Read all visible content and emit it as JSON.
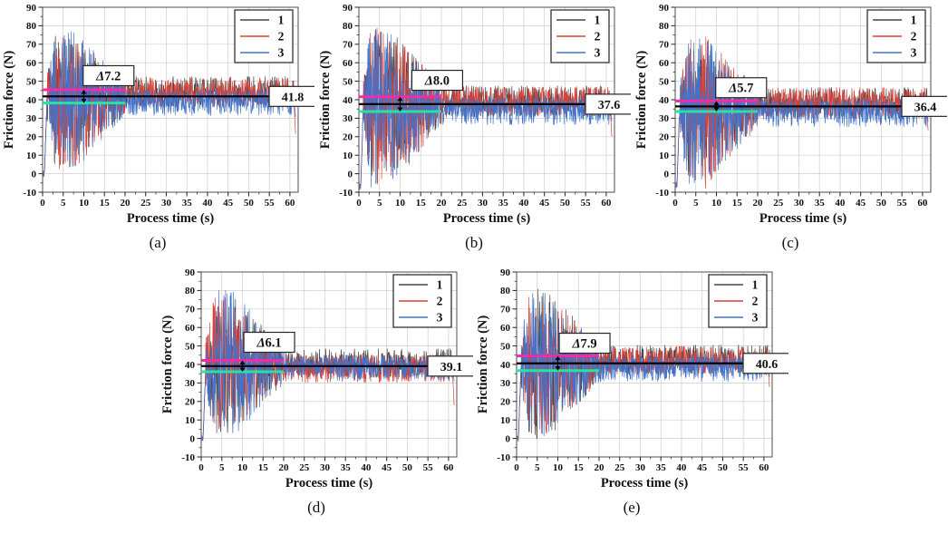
{
  "figure": {
    "xlabel": "Process time (s)",
    "ylabel": "Friction force (N)",
    "legend": [
      {
        "label": "1",
        "color": "#474747"
      },
      {
        "label": "2",
        "color": "#d8423a"
      },
      {
        "label": "3",
        "color": "#4273cc"
      }
    ]
  },
  "colors": {
    "grid": "#cdcdcd",
    "frame": "#4d4d4d",
    "text": "#111111",
    "mean_line": "#000000",
    "upper_band": "#f22ba6",
    "lower_band": "#27e2a0",
    "annotation_bg": "#ffffff",
    "annotation_border": "#262626"
  },
  "axes": {
    "xlim": [
      0,
      62
    ],
    "ylim": [
      -10,
      90
    ],
    "xticks": [
      0,
      5,
      10,
      15,
      20,
      25,
      30,
      35,
      40,
      45,
      50,
      55,
      60
    ],
    "yticks": [
      -10,
      0,
      10,
      20,
      30,
      40,
      50,
      60,
      70,
      80,
      90
    ],
    "x_minor_step": 2.5,
    "y_minor_step": 5,
    "grid": true
  },
  "chart_data": [
    {
      "type": "line",
      "caption": "(a)",
      "xlabel": "Process time (s)",
      "ylabel": "Friction force (N)",
      "legend": [
        "1",
        "2",
        "3"
      ],
      "xlim": [
        0,
        62
      ],
      "ylim": [
        -10,
        90
      ],
      "steady_mean": 41.8,
      "mean_label": "41.8",
      "delta": 7.2,
      "delta_symbol": "Δ",
      "delta_number": "7.2",
      "band": {
        "upper": 45.4,
        "lower": 38.2,
        "x_start": 0,
        "x_end": 20
      },
      "arrow_x": 10,
      "delta_box_pos": {
        "x": 16,
        "y": 53
      },
      "t_end": 61.4,
      "start_value": 0,
      "seed": 101,
      "early_phase": {
        "t_start": 1,
        "t_end": 20,
        "peak": 77,
        "min": 1
      },
      "late_band": {
        "high": 52,
        "low": 33
      },
      "series": [
        {
          "name": "1",
          "color": "#474747",
          "early_scale": 0.93,
          "late_up": 1.0,
          "late_down": 0.72,
          "offset": 0.5
        },
        {
          "name": "2",
          "color": "#d8423a",
          "early_scale": 0.96,
          "late_up": 0.85,
          "late_down": 0.75,
          "offset": 1.5,
          "end_dip": -22
        },
        {
          "name": "3",
          "color": "#4273cc",
          "early_scale": 1.0,
          "late_up": 0.5,
          "late_down": 1.0,
          "offset": -1.5,
          "end_dip": -12
        }
      ]
    },
    {
      "type": "line",
      "caption": "(b)",
      "xlabel": "Process time (s)",
      "ylabel": "Friction force (N)",
      "legend": [
        "1",
        "2",
        "3"
      ],
      "xlim": [
        0,
        62
      ],
      "ylim": [
        -10,
        90
      ],
      "steady_mean": 37.6,
      "mean_label": "37.6",
      "delta": 8.0,
      "delta_symbol": "Δ",
      "delta_number": "8.0",
      "band": {
        "upper": 41.6,
        "lower": 33.6,
        "x_start": 0,
        "x_end": 20
      },
      "arrow_x": 10,
      "delta_box_pos": {
        "x": 19,
        "y": 50.5
      },
      "t_end": 61.4,
      "start_value": -7,
      "seed": 202,
      "early_phase": {
        "t_start": 1,
        "t_end": 20,
        "peak": 80,
        "min": -8
      },
      "late_band": {
        "high": 47,
        "low": 28
      },
      "series": [
        {
          "name": "1",
          "color": "#474747",
          "early_scale": 0.95,
          "late_up": 1.0,
          "late_down": 0.75,
          "offset": 0.5
        },
        {
          "name": "2",
          "color": "#d8423a",
          "early_scale": 0.97,
          "late_up": 0.85,
          "late_down": 0.8,
          "offset": 1.5,
          "end_dip": -19
        },
        {
          "name": "3",
          "color": "#4273cc",
          "early_scale": 1.0,
          "late_up": 0.55,
          "late_down": 1.0,
          "offset": -1.5,
          "end_dip": -10
        }
      ]
    },
    {
      "type": "line",
      "caption": "(c)",
      "xlabel": "Process time (s)",
      "ylabel": "Friction force (N)",
      "legend": [
        "1",
        "2",
        "3"
      ],
      "xlim": [
        0,
        62
      ],
      "ylim": [
        -10,
        90
      ],
      "steady_mean": 36.4,
      "mean_label": "36.4",
      "delta": 5.7,
      "delta_symbol": "Δ",
      "delta_number": "5.7",
      "band": {
        "upper": 39.3,
        "lower": 33.6,
        "x_start": 0,
        "x_end": 20
      },
      "arrow_x": 10,
      "delta_box_pos": {
        "x": 16,
        "y": 46.5
      },
      "t_end": 61.4,
      "start_value": -6,
      "seed": 303,
      "early_phase": {
        "t_start": 1,
        "t_end": 20,
        "peak": 74,
        "min": -8
      },
      "late_band": {
        "high": 46,
        "low": 27
      },
      "series": [
        {
          "name": "1",
          "color": "#474747",
          "early_scale": 0.88,
          "late_up": 1.0,
          "late_down": 0.75,
          "offset": 0.5
        },
        {
          "name": "2",
          "color": "#d8423a",
          "early_scale": 1.0,
          "late_up": 0.9,
          "late_down": 0.85,
          "offset": 1.5,
          "end_dip": -14
        },
        {
          "name": "3",
          "color": "#4273cc",
          "early_scale": 0.97,
          "late_up": 0.6,
          "late_down": 1.0,
          "offset": -1.5,
          "end_dip": -9
        }
      ]
    },
    {
      "type": "line",
      "caption": "(d)",
      "xlabel": "Process time (s)",
      "ylabel": "Friction force (N)",
      "legend": [
        "1",
        "2",
        "3"
      ],
      "xlim": [
        0,
        62
      ],
      "ylim": [
        -10,
        90
      ],
      "steady_mean": 39.1,
      "mean_label": "39.1",
      "delta": 6.1,
      "delta_symbol": "Δ",
      "delta_number": "6.1",
      "band": {
        "upper": 42.2,
        "lower": 36.1,
        "x_start": 0,
        "x_end": 20
      },
      "arrow_x": 10,
      "delta_box_pos": {
        "x": 16.5,
        "y": 52
      },
      "t_end": 61.4,
      "start_value": 0,
      "seed": 404,
      "early_phase": {
        "t_start": 1,
        "t_end": 20,
        "peak": 80,
        "min": 0
      },
      "late_band": {
        "high": 48,
        "low": 30
      },
      "series": [
        {
          "name": "1",
          "color": "#474747",
          "early_scale": 0.93,
          "late_up": 1.0,
          "late_down": 0.72,
          "offset": 0.5
        },
        {
          "name": "2",
          "color": "#d8423a",
          "early_scale": 0.9,
          "late_up": 0.8,
          "late_down": 0.85,
          "offset": -1.0,
          "end_dip": -23
        },
        {
          "name": "3",
          "color": "#4273cc",
          "early_scale": 1.0,
          "late_up": 0.6,
          "late_down": 0.9,
          "offset": 0.5,
          "end_dip": -9
        }
      ]
    },
    {
      "type": "line",
      "caption": "(e)",
      "xlabel": "Process time (s)",
      "ylabel": "Friction force (N)",
      "legend": [
        "1",
        "2",
        "3"
      ],
      "xlim": [
        0,
        62
      ],
      "ylim": [
        -10,
        90
      ],
      "steady_mean": 40.6,
      "mean_label": "40.6",
      "delta": 7.9,
      "delta_symbol": "Δ",
      "delta_number": "7.9",
      "band": {
        "upper": 44.6,
        "lower": 36.7,
        "x_start": 0,
        "x_end": 20
      },
      "arrow_x": 10,
      "delta_box_pos": {
        "x": 16.5,
        "y": 51.5
      },
      "t_end": 61.4,
      "start_value": 0,
      "seed": 505,
      "early_phase": {
        "t_start": 1,
        "t_end": 20,
        "peak": 81,
        "min": 0
      },
      "late_band": {
        "high": 50,
        "low": 32
      },
      "series": [
        {
          "name": "1",
          "color": "#474747",
          "early_scale": 1.0,
          "late_up": 1.0,
          "late_down": 0.72,
          "offset": 0.5
        },
        {
          "name": "2",
          "color": "#d8423a",
          "early_scale": 0.95,
          "late_up": 0.85,
          "late_down": 0.8,
          "offset": 1.2,
          "end_dip": -14
        },
        {
          "name": "3",
          "color": "#4273cc",
          "early_scale": 0.97,
          "late_up": 0.55,
          "late_down": 1.0,
          "offset": -1.2,
          "end_dip": -8
        }
      ]
    }
  ]
}
